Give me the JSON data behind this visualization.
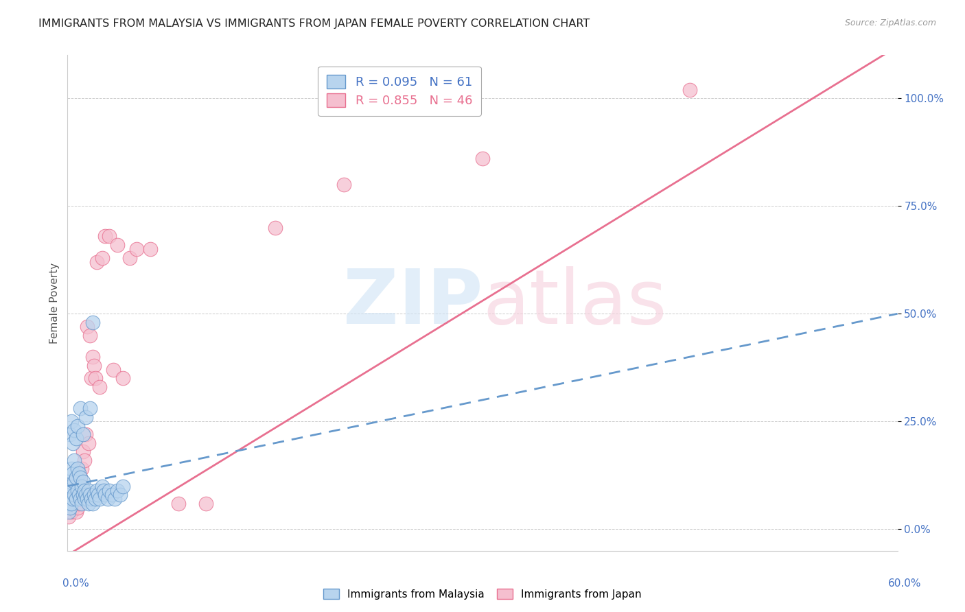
{
  "title": "IMMIGRANTS FROM MALAYSIA VS IMMIGRANTS FROM JAPAN FEMALE POVERTY CORRELATION CHART",
  "source": "Source: ZipAtlas.com",
  "ylabel": "Female Poverty",
  "ytick_labels": [
    "0.0%",
    "25.0%",
    "50.0%",
    "75.0%",
    "100.0%"
  ],
  "ytick_values": [
    0.0,
    0.25,
    0.5,
    0.75,
    1.0
  ],
  "xlim": [
    0.0,
    0.6
  ],
  "ylim": [
    -0.05,
    1.1
  ],
  "malaysia_color": "#b8d4ee",
  "malaysia_edge_color": "#6699cc",
  "japan_color": "#f5bfcf",
  "japan_edge_color": "#e87090",
  "malaysia_R": 0.095,
  "malaysia_N": 61,
  "japan_R": 0.855,
  "japan_N": 46,
  "grid_color": "#cccccc",
  "background_color": "#ffffff",
  "title_color": "#222222",
  "tick_label_color": "#4472c4",
  "malaysia_line_color": "#5588bb",
  "japan_line_color": "#dd4477",
  "watermark_color_zip": "#d0e4f5",
  "watermark_color_atlas": "#f5d0dc",
  "malaysia_x": [
    0.001,
    0.001,
    0.001,
    0.002,
    0.002,
    0.002,
    0.003,
    0.003,
    0.003,
    0.004,
    0.004,
    0.005,
    0.005,
    0.005,
    0.006,
    0.006,
    0.007,
    0.007,
    0.008,
    0.008,
    0.009,
    0.009,
    0.01,
    0.01,
    0.011,
    0.011,
    0.012,
    0.012,
    0.013,
    0.014,
    0.015,
    0.015,
    0.016,
    0.017,
    0.018,
    0.019,
    0.02,
    0.021,
    0.022,
    0.023,
    0.025,
    0.026,
    0.027,
    0.029,
    0.03,
    0.032,
    0.034,
    0.036,
    0.038,
    0.04,
    0.002,
    0.003,
    0.004,
    0.005,
    0.006,
    0.007,
    0.009,
    0.011,
    0.013,
    0.016,
    0.018
  ],
  "malaysia_y": [
    0.04,
    0.06,
    0.08,
    0.05,
    0.09,
    0.11,
    0.06,
    0.1,
    0.14,
    0.07,
    0.13,
    0.08,
    0.11,
    0.16,
    0.07,
    0.12,
    0.09,
    0.14,
    0.08,
    0.13,
    0.07,
    0.12,
    0.06,
    0.1,
    0.08,
    0.11,
    0.07,
    0.09,
    0.08,
    0.07,
    0.06,
    0.09,
    0.08,
    0.07,
    0.06,
    0.08,
    0.07,
    0.09,
    0.08,
    0.07,
    0.1,
    0.09,
    0.08,
    0.07,
    0.09,
    0.08,
    0.07,
    0.09,
    0.08,
    0.1,
    0.22,
    0.25,
    0.2,
    0.23,
    0.21,
    0.24,
    0.28,
    0.22,
    0.26,
    0.28,
    0.48
  ],
  "japan_x": [
    0.001,
    0.001,
    0.002,
    0.002,
    0.003,
    0.003,
    0.004,
    0.004,
    0.005,
    0.005,
    0.006,
    0.006,
    0.007,
    0.007,
    0.008,
    0.009,
    0.009,
    0.01,
    0.01,
    0.011,
    0.012,
    0.013,
    0.014,
    0.015,
    0.016,
    0.017,
    0.018,
    0.019,
    0.02,
    0.021,
    0.023,
    0.025,
    0.027,
    0.03,
    0.033,
    0.036,
    0.04,
    0.045,
    0.05,
    0.06,
    0.08,
    0.1,
    0.15,
    0.2,
    0.3,
    0.45
  ],
  "japan_y": [
    0.03,
    0.06,
    0.05,
    0.08,
    0.04,
    0.07,
    0.05,
    0.09,
    0.06,
    0.11,
    0.08,
    0.04,
    0.07,
    0.05,
    0.06,
    0.08,
    0.12,
    0.1,
    0.14,
    0.18,
    0.16,
    0.22,
    0.47,
    0.2,
    0.45,
    0.35,
    0.4,
    0.38,
    0.35,
    0.62,
    0.33,
    0.63,
    0.68,
    0.68,
    0.37,
    0.66,
    0.35,
    0.63,
    0.65,
    0.65,
    0.06,
    0.06,
    0.7,
    0.8,
    0.86,
    1.02
  ],
  "trendline_japan": [
    -0.06,
    1.12
  ],
  "trendline_malaysia": [
    0.1,
    0.5
  ]
}
